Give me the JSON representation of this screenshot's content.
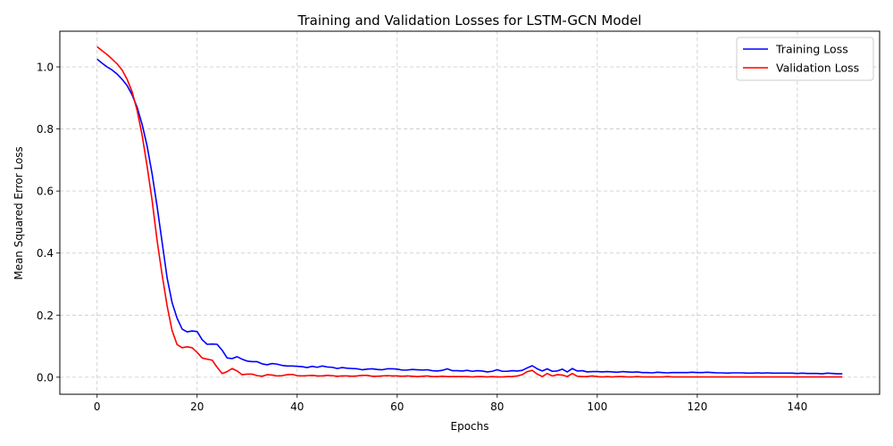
{
  "chart_data": {
    "type": "line",
    "title": "Training and Validation Losses for LSTM-GCN Model",
    "xlabel": "Epochs",
    "ylabel": "Mean Squared Error Loss",
    "xlim": [
      -7.45,
      156.45
    ],
    "ylim": [
      -0.055,
      1.115
    ],
    "xticks": [
      0,
      20,
      40,
      60,
      80,
      100,
      120,
      140
    ],
    "yticks": [
      0.0,
      0.2,
      0.4,
      0.6,
      0.8,
      1.0
    ],
    "xtick_labels": [
      "0",
      "20",
      "40",
      "60",
      "80",
      "100",
      "120",
      "140"
    ],
    "ytick_labels": [
      "0.0",
      "0.2",
      "0.4",
      "0.6",
      "0.8",
      "1.0"
    ],
    "grid": true,
    "legend_position": "top-right",
    "series": [
      {
        "name": "Training Loss",
        "color": "#0000ff",
        "x": [
          0,
          1,
          2,
          3,
          4,
          5,
          6,
          7,
          8,
          9,
          10,
          11,
          12,
          13,
          14,
          15,
          16,
          17,
          18,
          19,
          20,
          21,
          22,
          23,
          24,
          25,
          26,
          27,
          28,
          29,
          30,
          31,
          32,
          33,
          34,
          35,
          36,
          37,
          38,
          39,
          40,
          41,
          42,
          43,
          44,
          45,
          46,
          47,
          48,
          49,
          50,
          51,
          52,
          53,
          54,
          55,
          56,
          57,
          58,
          59,
          60,
          61,
          62,
          63,
          64,
          65,
          66,
          67,
          68,
          69,
          70,
          71,
          72,
          73,
          74,
          75,
          76,
          77,
          78,
          79,
          80,
          81,
          82,
          83,
          84,
          85,
          86,
          87,
          88,
          89,
          90,
          91,
          92,
          93,
          94,
          95,
          96,
          97,
          98,
          99,
          100,
          101,
          102,
          103,
          104,
          105,
          106,
          107,
          108,
          109,
          110,
          111,
          112,
          113,
          114,
          115,
          116,
          117,
          118,
          119,
          120,
          121,
          122,
          123,
          124,
          125,
          126,
          127,
          128,
          129,
          130,
          131,
          132,
          133,
          134,
          135,
          136,
          137,
          138,
          139,
          140,
          141,
          142,
          143,
          144,
          145,
          146,
          147,
          148,
          149
        ],
        "values": [
          1.025,
          1.012,
          1.0,
          0.99,
          0.977,
          0.96,
          0.94,
          0.91,
          0.87,
          0.815,
          0.745,
          0.655,
          0.55,
          0.435,
          0.32,
          0.24,
          0.19,
          0.155,
          0.146,
          0.149,
          0.147,
          0.121,
          0.106,
          0.107,
          0.106,
          0.087,
          0.062,
          0.06,
          0.066,
          0.058,
          0.052,
          0.05,
          0.05,
          0.043,
          0.04,
          0.044,
          0.042,
          0.038,
          0.036,
          0.036,
          0.035,
          0.034,
          0.031,
          0.035,
          0.032,
          0.036,
          0.033,
          0.032,
          0.028,
          0.031,
          0.029,
          0.028,
          0.027,
          0.024,
          0.026,
          0.027,
          0.025,
          0.024,
          0.027,
          0.027,
          0.026,
          0.023,
          0.023,
          0.025,
          0.024,
          0.023,
          0.024,
          0.021,
          0.02,
          0.022,
          0.027,
          0.021,
          0.021,
          0.02,
          0.022,
          0.019,
          0.021,
          0.02,
          0.017,
          0.019,
          0.024,
          0.019,
          0.019,
          0.021,
          0.02,
          0.022,
          0.03,
          0.037,
          0.027,
          0.02,
          0.027,
          0.019,
          0.02,
          0.026,
          0.017,
          0.028,
          0.02,
          0.021,
          0.017,
          0.018,
          0.018,
          0.017,
          0.018,
          0.017,
          0.016,
          0.018,
          0.017,
          0.016,
          0.017,
          0.015,
          0.015,
          0.014,
          0.016,
          0.015,
          0.014,
          0.015,
          0.015,
          0.015,
          0.015,
          0.016,
          0.015,
          0.015,
          0.016,
          0.015,
          0.014,
          0.014,
          0.013,
          0.014,
          0.014,
          0.014,
          0.013,
          0.013,
          0.014,
          0.013,
          0.014,
          0.013,
          0.013,
          0.013,
          0.013,
          0.013,
          0.012,
          0.013,
          0.012,
          0.012,
          0.012,
          0.011,
          0.013,
          0.012,
          0.011,
          0.011
        ]
      },
      {
        "name": "Validation Loss",
        "color": "#ff0000",
        "x": [
          0,
          1,
          2,
          3,
          4,
          5,
          6,
          7,
          8,
          9,
          10,
          11,
          12,
          13,
          14,
          15,
          16,
          17,
          18,
          19,
          20,
          21,
          22,
          23,
          24,
          25,
          26,
          27,
          28,
          29,
          30,
          31,
          32,
          33,
          34,
          35,
          36,
          37,
          38,
          39,
          40,
          41,
          42,
          43,
          44,
          45,
          46,
          47,
          48,
          49,
          50,
          51,
          52,
          53,
          54,
          55,
          56,
          57,
          58,
          59,
          60,
          61,
          62,
          63,
          64,
          65,
          66,
          67,
          68,
          69,
          70,
          71,
          72,
          73,
          74,
          75,
          76,
          77,
          78,
          79,
          80,
          81,
          82,
          83,
          84,
          85,
          86,
          87,
          88,
          89,
          90,
          91,
          92,
          93,
          94,
          95,
          96,
          97,
          98,
          99,
          100,
          101,
          102,
          103,
          104,
          105,
          106,
          107,
          108,
          109,
          110,
          111,
          112,
          113,
          114,
          115,
          116,
          117,
          118,
          119,
          120,
          121,
          122,
          123,
          124,
          125,
          126,
          127,
          128,
          129,
          130,
          131,
          132,
          133,
          134,
          135,
          136,
          137,
          138,
          139,
          140,
          141,
          142,
          143,
          144,
          145,
          146,
          147,
          148,
          149
        ],
        "values": [
          1.065,
          1.052,
          1.04,
          1.025,
          1.01,
          0.99,
          0.96,
          0.92,
          0.86,
          0.78,
          0.68,
          0.57,
          0.44,
          0.33,
          0.23,
          0.15,
          0.105,
          0.095,
          0.098,
          0.095,
          0.08,
          0.062,
          0.058,
          0.055,
          0.032,
          0.012,
          0.018,
          0.028,
          0.02,
          0.008,
          0.01,
          0.01,
          0.005,
          0.003,
          0.008,
          0.007,
          0.004,
          0.005,
          0.008,
          0.009,
          0.005,
          0.004,
          0.005,
          0.006,
          0.004,
          0.004,
          0.006,
          0.005,
          0.003,
          0.004,
          0.004,
          0.003,
          0.004,
          0.006,
          0.006,
          0.003,
          0.003,
          0.004,
          0.005,
          0.004,
          0.004,
          0.003,
          0.004,
          0.003,
          0.002,
          0.003,
          0.004,
          0.002,
          0.002,
          0.003,
          0.002,
          0.002,
          0.002,
          0.002,
          0.002,
          0.001,
          0.002,
          0.002,
          0.001,
          0.002,
          0.001,
          0.001,
          0.002,
          0.002,
          0.004,
          0.008,
          0.018,
          0.022,
          0.01,
          0.002,
          0.012,
          0.004,
          0.008,
          0.007,
          0.002,
          0.012,
          0.003,
          0.002,
          0.002,
          0.004,
          0.002,
          0.001,
          0.002,
          0.001,
          0.002,
          0.002,
          0.001,
          0.001,
          0.002,
          0.001,
          0.001,
          0.001,
          0.001,
          0.001,
          0.002,
          0.001,
          0.001,
          0.001,
          0.001,
          0.001,
          0.001,
          0.001,
          0.001,
          0.001,
          0.001,
          0.001,
          0.001,
          0.001,
          0.001,
          0.001,
          0.001,
          0.001,
          0.001,
          0.001,
          0.001,
          0.001,
          0.001,
          0.001,
          0.001,
          0.001,
          0.001,
          0.001,
          0.001,
          0.001,
          0.001,
          0.001,
          0.001,
          0.001,
          0.001,
          0.001
        ]
      }
    ]
  }
}
